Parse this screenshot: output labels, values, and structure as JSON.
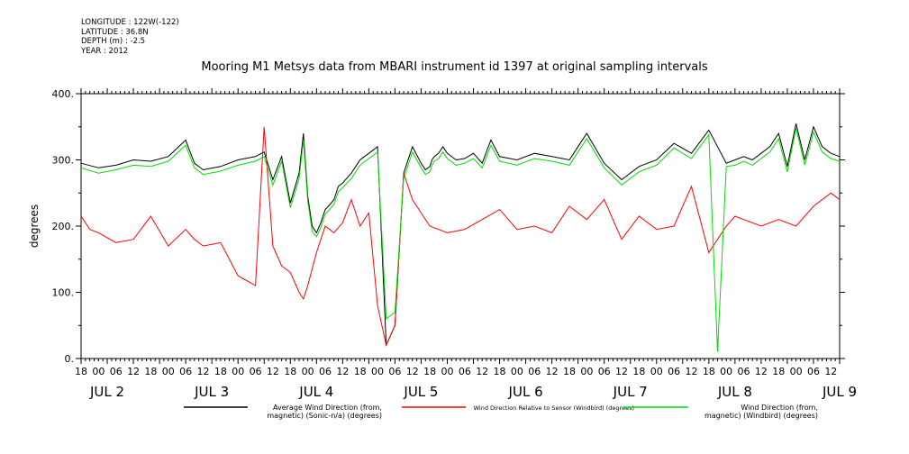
{
  "meta": {
    "longitude": "LONGITUDE : 122W(-122)",
    "latitude": "LATITUDE : 36.8N",
    "depth": "DEPTH (m) : -2.5",
    "year": "YEAR : 2012"
  },
  "chart_data": {
    "type": "line",
    "title": "Mooring M1 Metsys data from MBARI instrument id 1397 at original sampling intervals",
    "ylabel": "degrees",
    "xlabel": "",
    "ylim": [
      0,
      400
    ],
    "xlim_hours": [
      0,
      174
    ],
    "y_ticks": [
      0,
      100,
      200,
      300,
      400
    ],
    "y_tick_labels": [
      "0.",
      "100.",
      "200.",
      "300.",
      "400."
    ],
    "x_tick_labels": [
      "18",
      "00",
      "06",
      "12",
      "18",
      "00",
      "06",
      "12",
      "18",
      "00",
      "06",
      "12",
      "18",
      "00",
      "06",
      "12",
      "18",
      "00",
      "06",
      "12",
      "18",
      "00",
      "06",
      "12",
      "18",
      "00",
      "06",
      "12",
      "18",
      "00",
      "06",
      "12",
      "18",
      "00",
      "06",
      "12",
      "18",
      "00",
      "06",
      "12",
      "18",
      "00",
      "06",
      "12",
      "18"
    ],
    "day_labels": [
      {
        "hour": 6,
        "label": "JUL  2"
      },
      {
        "hour": 30,
        "label": "JUL  3"
      },
      {
        "hour": 54,
        "label": "JUL  4"
      },
      {
        "hour": 78,
        "label": "JUL  5"
      },
      {
        "hour": 102,
        "label": "JUL  6"
      },
      {
        "hour": 126,
        "label": "JUL  7"
      },
      {
        "hour": 150,
        "label": "JUL  8"
      },
      {
        "hour": 174,
        "label": "JUL  9"
      }
    ],
    "grid": false,
    "legend_position": "bottom",
    "series": [
      {
        "name": "Average Wind Direction (from, magnetic) (Sonic-n/a) (degrees)",
        "legend_line1": "Average Wind Direction (from,",
        "legend_line2": "magnetic) (Sonic-n/a) (degrees)",
        "color": "#000000",
        "x": [
          0,
          4,
          8,
          12,
          16,
          20,
          24,
          26,
          28,
          32,
          36,
          40,
          42,
          44,
          46,
          48,
          50,
          51,
          52,
          53,
          54,
          55,
          56,
          57,
          58,
          59,
          60,
          62,
          64,
          66,
          68,
          70,
          72,
          74,
          76,
          78,
          79,
          80,
          80.5,
          81,
          82,
          83,
          84,
          86,
          88,
          90,
          92,
          94,
          96,
          100,
          104,
          108,
          112,
          116,
          120,
          124,
          128,
          132,
          136,
          140,
          144,
          146,
          148,
          150,
          152,
          154,
          156,
          158,
          160,
          162,
          164,
          166,
          168,
          170,
          172,
          174
        ],
        "y": [
          295,
          288,
          292,
          300,
          298,
          305,
          330,
          295,
          285,
          290,
          300,
          305,
          312,
          270,
          305,
          235,
          280,
          340,
          245,
          200,
          190,
          205,
          225,
          232,
          240,
          260,
          265,
          280,
          300,
          310,
          320,
          20,
          50,
          280,
          320,
          295,
          285,
          290,
          300,
          305,
          310,
          320,
          310,
          300,
          302,
          310,
          295,
          330,
          305,
          300,
          310,
          305,
          300,
          340,
          295,
          270,
          290,
          300,
          325,
          310,
          345,
          320,
          295,
          300,
          305,
          300,
          310,
          320,
          340,
          290,
          355,
          300,
          350,
          320,
          310,
          305
        ]
      },
      {
        "name": "Wind Direction Relative to Sensor (Windbird) (degrees)",
        "legend_line1": "Wind Direction Relative to Sensor (Windbird) (degrees)",
        "legend_line2": "",
        "color": "#ff0000",
        "x": [
          0,
          2,
          4,
          8,
          12,
          16,
          20,
          24,
          26,
          28,
          32,
          36,
          40,
          42,
          44,
          46,
          48,
          50,
          51,
          52,
          54,
          56,
          58,
          60,
          62,
          64,
          66,
          68,
          70,
          72,
          74,
          76,
          80,
          84,
          88,
          92,
          96,
          100,
          104,
          108,
          112,
          116,
          120,
          124,
          128,
          132,
          136,
          140,
          144,
          148,
          150,
          152,
          156,
          160,
          164,
          168,
          170,
          172,
          174
        ],
        "y": [
          215,
          195,
          190,
          175,
          180,
          215,
          170,
          195,
          180,
          170,
          175,
          125,
          110,
          350,
          170,
          140,
          130,
          100,
          90,
          110,
          160,
          200,
          190,
          205,
          240,
          200,
          220,
          80,
          20,
          50,
          280,
          240,
          200,
          190,
          195,
          210,
          225,
          195,
          200,
          190,
          230,
          210,
          240,
          180,
          215,
          195,
          200,
          260,
          160,
          200,
          215,
          210,
          200,
          210,
          200,
          230,
          240,
          250,
          240
        ]
      },
      {
        "name": "Wind Direction (from, magnetic) (Windbird) (degrees)",
        "legend_line1": "Wind Direction (from,",
        "legend_line2": "magnetic) (Windbird) (degrees)",
        "color": "#00dd00",
        "x": [
          0,
          4,
          8,
          12,
          16,
          20,
          24,
          26,
          28,
          32,
          36,
          40,
          42,
          44,
          46,
          48,
          50,
          51,
          52,
          53,
          54,
          55,
          56,
          57,
          58,
          59,
          60,
          62,
          64,
          66,
          68,
          70,
          72,
          74,
          76,
          78,
          79,
          80,
          80.5,
          81,
          82,
          83,
          84,
          86,
          88,
          90,
          92,
          94,
          96,
          100,
          104,
          108,
          112,
          116,
          120,
          124,
          128,
          132,
          136,
          140,
          144,
          146,
          148,
          150,
          152,
          154,
          156,
          158,
          160,
          162,
          164,
          166,
          168,
          170,
          172,
          174
        ],
        "y": [
          288,
          280,
          285,
          292,
          290,
          298,
          322,
          288,
          278,
          283,
          292,
          298,
          305,
          262,
          298,
          228,
          272,
          330,
          238,
          192,
          184,
          198,
          218,
          225,
          233,
          252,
          258,
          272,
          292,
          302,
          312,
          60,
          70,
          272,
          312,
          288,
          278,
          282,
          292,
          298,
          302,
          312,
          302,
          292,
          295,
          302,
          288,
          322,
          298,
          292,
          302,
          298,
          292,
          332,
          288,
          262,
          282,
          292,
          318,
          302,
          338,
          10,
          290,
          292,
          298,
          292,
          302,
          312,
          332,
          282,
          348,
          292,
          342,
          312,
          302,
          298
        ]
      }
    ]
  }
}
